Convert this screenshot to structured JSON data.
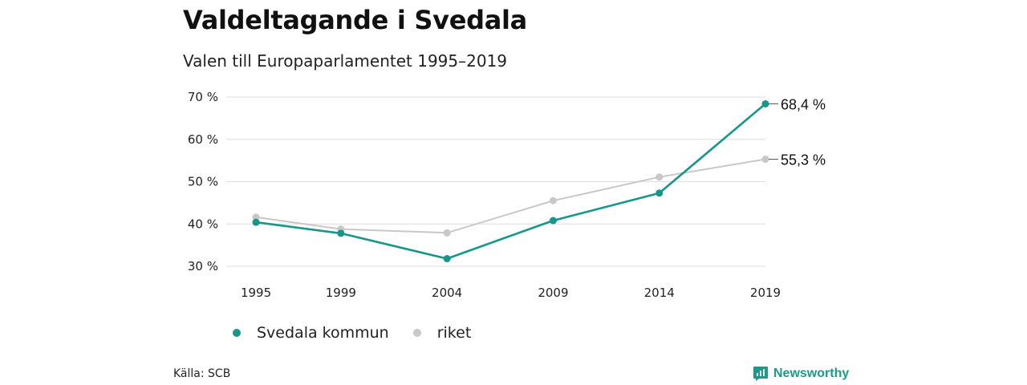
{
  "title": "Valdeltagande i Svedala",
  "subtitle": "Valen till Europaparlamentet 1995–2019",
  "source": "Källa: SCB",
  "brand": "Newsworthy",
  "colors": {
    "svedala": "#17968a",
    "riket": "#c8c8c8",
    "grid": "#dddddd",
    "brand": "#1a9a88"
  },
  "chart_data": {
    "type": "line",
    "x": [
      1995,
      1999,
      2004,
      2009,
      2014,
      2019
    ],
    "x_tick_labels": [
      "1995",
      "1999",
      "2004",
      "2009",
      "2014",
      "2019"
    ],
    "y_ticks": [
      30,
      40,
      50,
      60,
      70
    ],
    "y_tick_labels": [
      "30 %",
      "40 %",
      "50 %",
      "60 %",
      "70 %"
    ],
    "ylim": [
      30,
      70
    ],
    "grid": true,
    "legend_position": "bottom-left",
    "series": [
      {
        "name": "riket",
        "color": "#c8c8c8",
        "values": [
          41.6,
          38.8,
          37.9,
          45.5,
          51.1,
          55.3
        ],
        "end_label": "55,3 %"
      },
      {
        "name": "Svedala kommun",
        "color": "#17968a",
        "values": [
          40.4,
          37.8,
          31.8,
          40.8,
          47.3,
          68.4
        ],
        "end_label": "68,4 %"
      }
    ]
  }
}
